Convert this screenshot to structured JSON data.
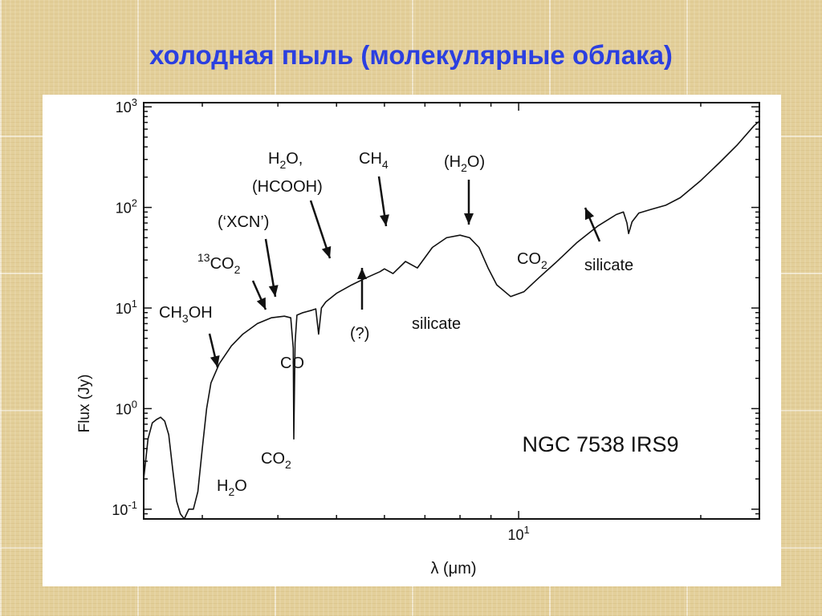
{
  "slide": {
    "title": "холодная пыль (молекулярные облака)"
  },
  "chart_data": {
    "type": "line",
    "ylabel": "Flux (Jy)",
    "xlabel": "λ (μm)",
    "x_scale": "log",
    "y_scale": "log",
    "xlim": [
      2.4,
      25
    ],
    "ylim": [
      0.08,
      1100
    ],
    "grid": false,
    "y_ticks": [
      {
        "value": 0.1,
        "base": "10",
        "exp": "-1"
      },
      {
        "value": 1,
        "base": "10",
        "exp": "0"
      },
      {
        "value": 10,
        "base": "10",
        "exp": "1"
      },
      {
        "value": 100,
        "base": "10",
        "exp": "2"
      },
      {
        "value": 1000,
        "base": "10",
        "exp": "3"
      }
    ],
    "x_ticks": [
      {
        "value": 10,
        "base": "10",
        "exp": "1"
      }
    ],
    "object_label": "NGC 7538  IRS9",
    "series": [
      {
        "x": [
          2.4,
          2.44,
          2.48,
          2.52,
          2.56,
          2.6,
          2.64,
          2.68,
          2.72,
          2.76,
          2.8,
          2.85,
          2.9,
          2.95,
          3.0,
          3.05,
          3.1,
          3.2,
          3.35,
          3.5,
          3.7,
          3.9,
          4.1,
          4.2,
          4.24,
          4.25,
          4.27,
          4.3,
          4.4,
          4.55,
          4.62,
          4.67,
          4.72,
          4.8,
          5.0,
          5.3,
          5.6,
          5.9,
          6.0,
          6.2,
          6.5,
          6.8,
          7.2,
          7.6,
          8.0,
          8.3,
          8.6,
          8.9,
          9.2,
          9.7,
          10.2,
          10.8,
          11.5,
          12.5,
          13.5,
          14.5,
          14.9,
          15.1,
          15.2,
          15.4,
          15.8,
          16.5,
          17.5,
          18.5,
          20.0,
          21.5,
          23.0,
          24.5,
          25.0
        ],
        "y": [
          0.2,
          0.5,
          0.72,
          0.78,
          0.82,
          0.75,
          0.55,
          0.25,
          0.12,
          0.09,
          0.08,
          0.1,
          0.1,
          0.15,
          0.4,
          1.0,
          1.8,
          2.8,
          4.2,
          5.5,
          7.0,
          8.0,
          8.3,
          8.0,
          4.0,
          0.5,
          4.5,
          8.5,
          9.0,
          9.5,
          9.8,
          5.5,
          10.0,
          11.5,
          14.0,
          17.0,
          20.0,
          23.0,
          24.5,
          22.0,
          29.0,
          25.0,
          40.0,
          50.0,
          53.0,
          50.0,
          40.0,
          25.0,
          17.0,
          13.0,
          14.5,
          20.0,
          28.0,
          45.0,
          65.0,
          85.0,
          90.0,
          70.0,
          55.0,
          72.0,
          88.0,
          95.0,
          105.0,
          125.0,
          185.0,
          280.0,
          420.0,
          650.0,
          720.0
        ]
      }
    ],
    "annotations": [
      {
        "id": "ch3oh",
        "base": "CH",
        "sub": "3",
        "tail": "OH"
      },
      {
        "id": "13co2",
        "sup": "13",
        "base": "CO",
        "sub": "2"
      },
      {
        "id": "xcn",
        "text": "(‘XCN’)"
      },
      {
        "id": "h2o-hcooh-1",
        "base": "H",
        "sub": "2",
        "tail": "O,"
      },
      {
        "id": "h2o-hcooh-2",
        "text": "(HCOOH)"
      },
      {
        "id": "ch4",
        "base": "CH",
        "sub": "4"
      },
      {
        "id": "h2o-paren",
        "base": "(H",
        "sub": "2",
        "tail": "O)"
      },
      {
        "id": "co2-15",
        "base": "CO",
        "sub": "2"
      },
      {
        "id": "silicate-18",
        "text": "silicate"
      },
      {
        "id": "silicate-10",
        "text": "silicate"
      },
      {
        "id": "unknown",
        "text": "(?)"
      },
      {
        "id": "co",
        "text": "CO"
      },
      {
        "id": "co2-43",
        "base": "CO",
        "sub": "2"
      },
      {
        "id": "h2o-3",
        "base": "H",
        "sub": "2",
        "tail": "O"
      }
    ]
  }
}
